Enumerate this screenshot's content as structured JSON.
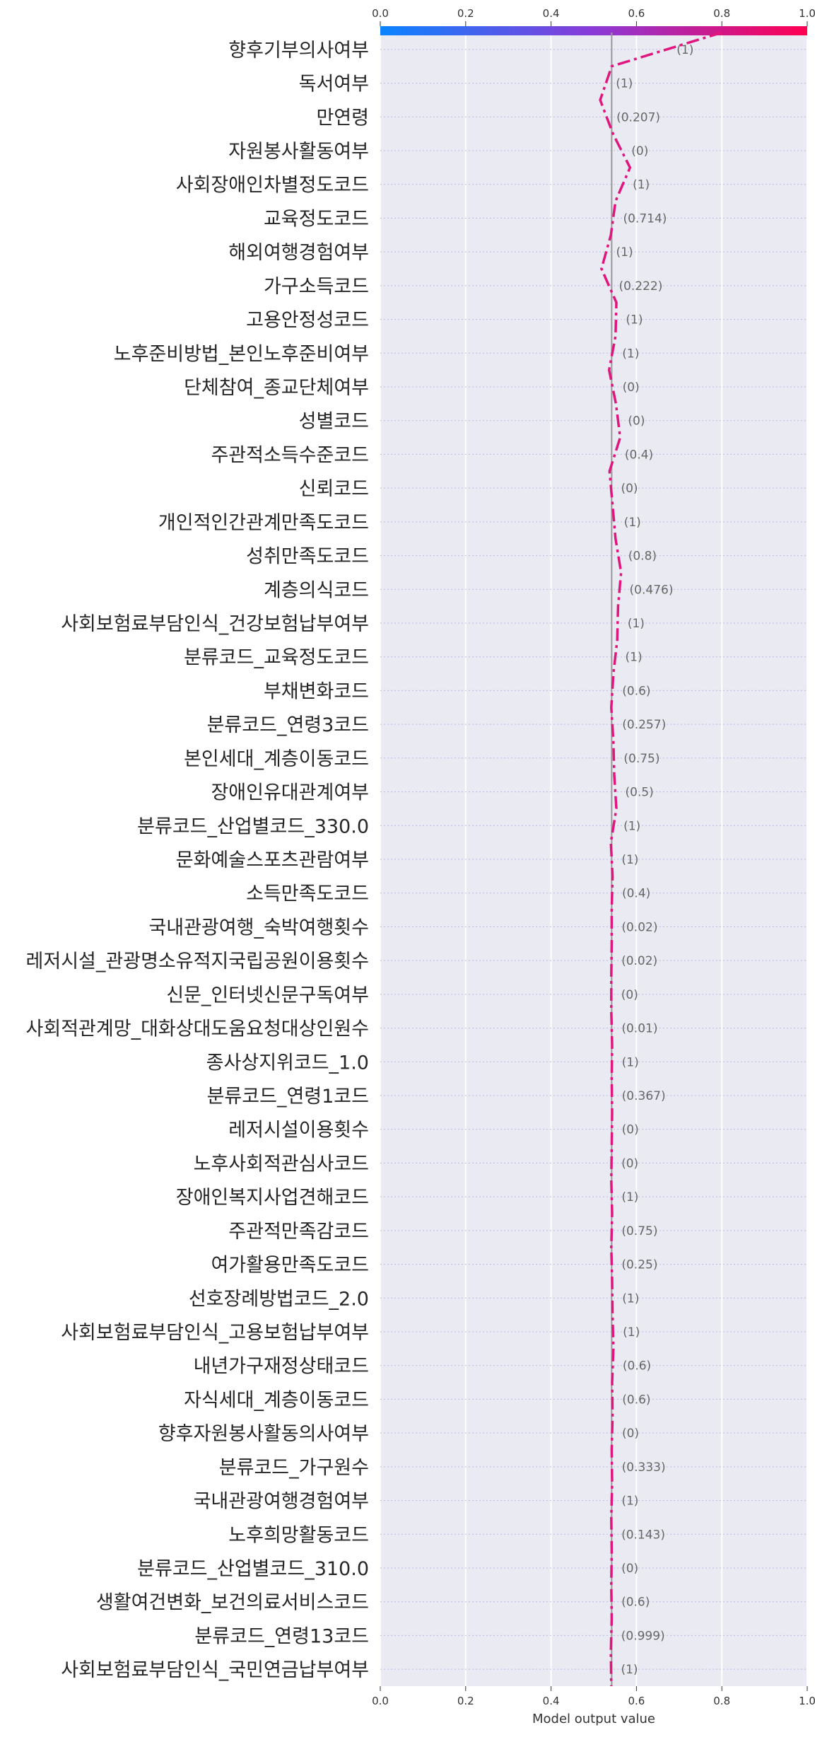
{
  "chart_data": {
    "type": "line",
    "xlabel": "Model output value",
    "xlim": [
      0,
      1
    ],
    "x_ticks": [
      "0.0",
      "0.2",
      "0.4",
      "0.6",
      "0.8",
      "1.0"
    ],
    "grid": true,
    "colorbar": {
      "range": [
        0,
        1
      ],
      "color_low": "#0a84ff",
      "color_high": "#ff0051"
    },
    "base_value": 0.542,
    "line_color": "#e0157d",
    "features": [
      {
        "name": "향후기부의사여부",
        "value_label": "(1)",
        "output": 0.542
      },
      {
        "name": "독서여부",
        "value_label": "(1)",
        "output": 0.515
      },
      {
        "name": "만연령",
        "value_label": "(0.207)",
        "output": 0.545
      },
      {
        "name": "자원봉사활동여부",
        "value_label": "(0)",
        "output": 0.585
      },
      {
        "name": "사회장애인차별정도코드",
        "value_label": "(1)",
        "output": 0.551
      },
      {
        "name": "교육정도코드",
        "value_label": "(0.714)",
        "output": 0.54
      },
      {
        "name": "해외여행경험여부",
        "value_label": "(1)",
        "output": 0.518
      },
      {
        "name": "가구소득코드",
        "value_label": "(0.222)",
        "output": 0.553
      },
      {
        "name": "고용안정성코드",
        "value_label": "(1)",
        "output": 0.551
      },
      {
        "name": "노후준비방법_본인노후준비여부",
        "value_label": "(1)",
        "output": 0.536
      },
      {
        "name": "단체참여_종교단체여부",
        "value_label": "(0)",
        "output": 0.552
      },
      {
        "name": "성별코드",
        "value_label": "(0)",
        "output": 0.562
      },
      {
        "name": "주관적소득수준코드",
        "value_label": "(0.4)",
        "output": 0.537
      },
      {
        "name": "신뢰코드",
        "value_label": "(0)",
        "output": 0.544
      },
      {
        "name": "개인적인간관계만족도코드",
        "value_label": "(1)",
        "output": 0.551
      },
      {
        "name": "성취만족도코드",
        "value_label": "(0.8)",
        "output": 0.564
      },
      {
        "name": "계층의식코드",
        "value_label": "(0.476)",
        "output": 0.557
      },
      {
        "name": "사회보험료부담인식_건강보험납부여부",
        "value_label": "(1)",
        "output": 0.555
      },
      {
        "name": "분류코드_교육정도코드",
        "value_label": "(1)",
        "output": 0.546
      },
      {
        "name": "부채변화코드",
        "value_label": "(0.6)",
        "output": 0.541
      },
      {
        "name": "분류코드_연령3코드",
        "value_label": "(0.257)",
        "output": 0.546
      },
      {
        "name": "본인세대_계층이동코드",
        "value_label": "(0.75)",
        "output": 0.548
      },
      {
        "name": "장애인유대관계여부",
        "value_label": "(0.5)",
        "output": 0.553
      },
      {
        "name": "분류코드_산업별코드_330.0",
        "value_label": "(1)",
        "output": 0.54
      },
      {
        "name": "문화예술스포츠관람여부",
        "value_label": "(1)",
        "output": 0.544
      },
      {
        "name": "소득만족도코드",
        "value_label": "(0.4)",
        "output": 0.542
      },
      {
        "name": "국내관광여행_숙박여행횟수",
        "value_label": "(0.02)",
        "output": 0.542
      },
      {
        "name": "레저시설_관광명소유적지국립공원이용횟수",
        "value_label": "(0.02)",
        "output": 0.541
      },
      {
        "name": "신문_인터넷신문구독여부",
        "value_label": "(0)",
        "output": 0.541
      },
      {
        "name": "사회적관계망_대화상대도움요청대상인원수",
        "value_label": "(0.01)",
        "output": 0.543
      },
      {
        "name": "종사상지위코드_1.0",
        "value_label": "(1)",
        "output": 0.542
      },
      {
        "name": "분류코드_연령1코드",
        "value_label": "(0.367)",
        "output": 0.543
      },
      {
        "name": "레저시설이용횟수",
        "value_label": "(0)",
        "output": 0.542
      },
      {
        "name": "노후사회적관심사코드",
        "value_label": "(0)",
        "output": 0.541
      },
      {
        "name": "장애인복지사업견해코드",
        "value_label": "(1)",
        "output": 0.543
      },
      {
        "name": "주관적만족감코드",
        "value_label": "(0.75)",
        "output": 0.541
      },
      {
        "name": "여가활용만족도코드",
        "value_label": "(0.25)",
        "output": 0.543
      },
      {
        "name": "선호장례방법코드_2.0",
        "value_label": "(1)",
        "output": 0.544
      },
      {
        "name": "사회보험료부담인식_고용보험납부여부",
        "value_label": "(1)",
        "output": 0.546
      },
      {
        "name": "내년가구재정상태코드",
        "value_label": "(0.6)",
        "output": 0.543
      },
      {
        "name": "자식세대_계층이동코드",
        "value_label": "(0.6)",
        "output": 0.544
      },
      {
        "name": "향후자원봉사활동의사여부",
        "value_label": "(0)",
        "output": 0.542
      },
      {
        "name": "분류코드_가구원수",
        "value_label": "(0.333)",
        "output": 0.543
      },
      {
        "name": "국내관광여행경험여부",
        "value_label": "(1)",
        "output": 0.541
      },
      {
        "name": "노후희망활동코드",
        "value_label": "(0.143)",
        "output": 0.542
      },
      {
        "name": "분류코드_산업별코드_310.0",
        "value_label": "(0)",
        "output": 0.541
      },
      {
        "name": "생활여건변화_보건의료서비스코드",
        "value_label": "(0.6)",
        "output": 0.542
      },
      {
        "name": "분류코드_연령13코드",
        "value_label": "(0.999)",
        "output": 0.54
      },
      {
        "name": "사회보험료부담인식_국민연금납부여부",
        "value_label": "(1)",
        "output": 0.541
      }
    ],
    "top_output": 0.8
  }
}
